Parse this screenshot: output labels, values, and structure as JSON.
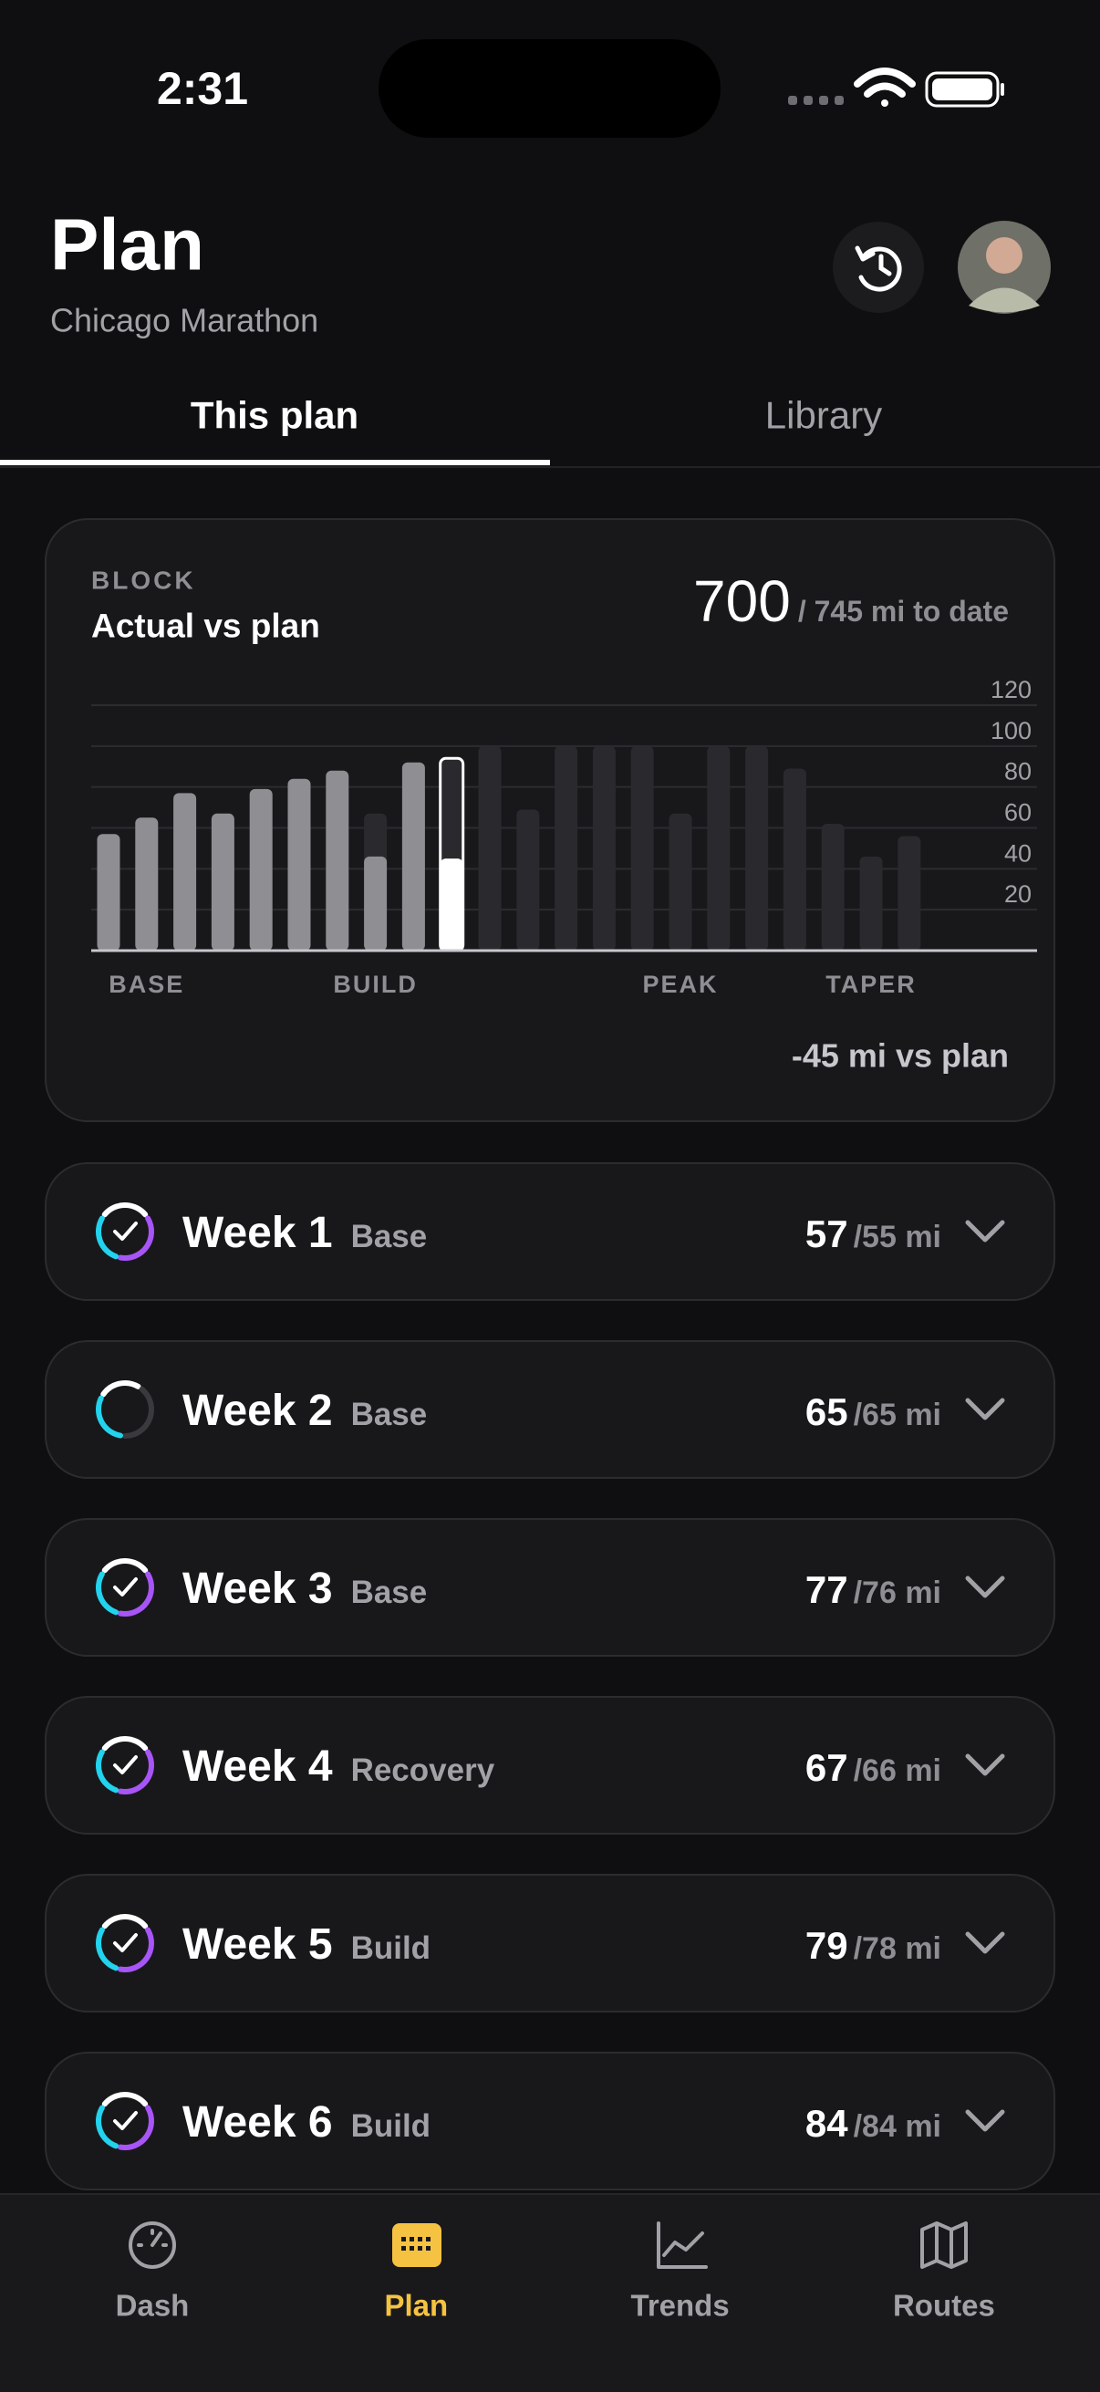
{
  "status_bar": {
    "time": "2:31"
  },
  "header": {
    "title": "Plan",
    "subtitle": "Chicago Marathon"
  },
  "tabs": [
    {
      "label": "This plan",
      "active": true
    },
    {
      "label": "Library",
      "active": false
    }
  ],
  "block": {
    "eyebrow": "BLOCK",
    "title": "Actual vs plan",
    "total": "700",
    "total_note": "/ 745 mi to date",
    "delta": "-45 mi vs plan"
  },
  "chart_data": {
    "type": "bar",
    "categories": [
      null,
      "BASE",
      null,
      null,
      null,
      null,
      null,
      "BUILD",
      null,
      null,
      null,
      null,
      null,
      null,
      null,
      "PEAK",
      null,
      null,
      null,
      null,
      "TAPER",
      null
    ],
    "series": [
      {
        "color": "#2a2a2e",
        "values": [
          55,
          65,
          76,
          66,
          78,
          84,
          80,
          67,
          80,
          94,
          100,
          69,
          100,
          100,
          100,
          67,
          100,
          100,
          89,
          62,
          46,
          56
        ]
      },
      {
        "color": "#8e8e93",
        "values": [
          57,
          65,
          77,
          67,
          79,
          84,
          88,
          46,
          92,
          45,
          null,
          null,
          null,
          null,
          null,
          null,
          null,
          null,
          null,
          null,
          null,
          null
        ]
      }
    ],
    "highlight_index": 9,
    "highlight_color": "#ffffff",
    "ylim": [
      0,
      120
    ],
    "yticks": [
      20,
      40,
      60,
      80,
      100,
      120
    ],
    "grid": true
  },
  "weeks": [
    {
      "name": "Week 1",
      "phase": "Base",
      "miles": "57",
      "plan": "/55 mi",
      "status": "complete"
    },
    {
      "name": "Week 2",
      "phase": "Base",
      "miles": "65",
      "plan": "/65 mi",
      "status": "in-progress"
    },
    {
      "name": "Week 3",
      "phase": "Base",
      "miles": "77",
      "plan": "/76 mi",
      "status": "complete"
    },
    {
      "name": "Week 4",
      "phase": "Recovery",
      "miles": "67",
      "plan": "/66 mi",
      "status": "complete"
    },
    {
      "name": "Week 5",
      "phase": "Build",
      "miles": "79",
      "plan": "/78 mi",
      "status": "complete"
    },
    {
      "name": "Week 6",
      "phase": "Build",
      "miles": "84",
      "plan": "/84 mi",
      "status": "complete"
    }
  ],
  "nav": [
    {
      "label": "Dash",
      "active": false
    },
    {
      "label": "Plan",
      "active": true
    },
    {
      "label": "Trends",
      "active": false
    },
    {
      "label": "Routes",
      "active": false
    }
  ]
}
